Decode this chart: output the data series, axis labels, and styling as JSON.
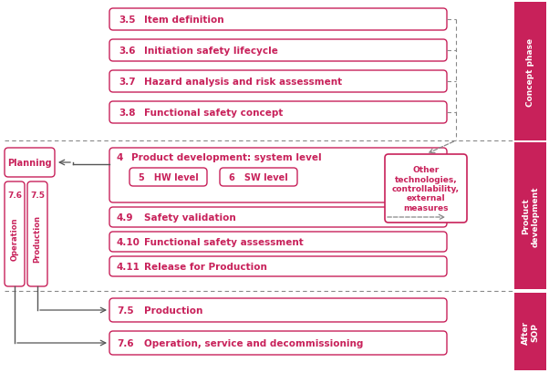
{
  "bg_color": "#ffffff",
  "ec": "#c8215a",
  "tc": "#c8215a",
  "dc": "#888888",
  "ac": "#555555",
  "phase_color": "#c8215a",
  "concept_boxes": [
    {
      "num": "3.5",
      "label": "Item definition"
    },
    {
      "num": "3.6",
      "label": "Initiation safety lifecycle"
    },
    {
      "num": "3.7",
      "label": "Hazard analysis and risk assessment"
    },
    {
      "num": "3.8",
      "label": "Functional safety concept"
    }
  ],
  "product_sub_boxes": [
    {
      "num": "4.9",
      "label": "Safety validation"
    },
    {
      "num": "4.10",
      "label": "Functional safety assessment"
    },
    {
      "num": "4.11",
      "label": "Release for Production"
    }
  ],
  "after_boxes": [
    {
      "num": "7.5",
      "label": "Production"
    },
    {
      "num": "7.6",
      "label": "Operation, service and decommissioning"
    }
  ],
  "phase_labels": [
    "Concept phase",
    "Product\ndevelopment",
    "After\nSOP"
  ],
  "other_text": "Other\ntechnologies,\ncontrollability,\nexternal\nmeasures"
}
